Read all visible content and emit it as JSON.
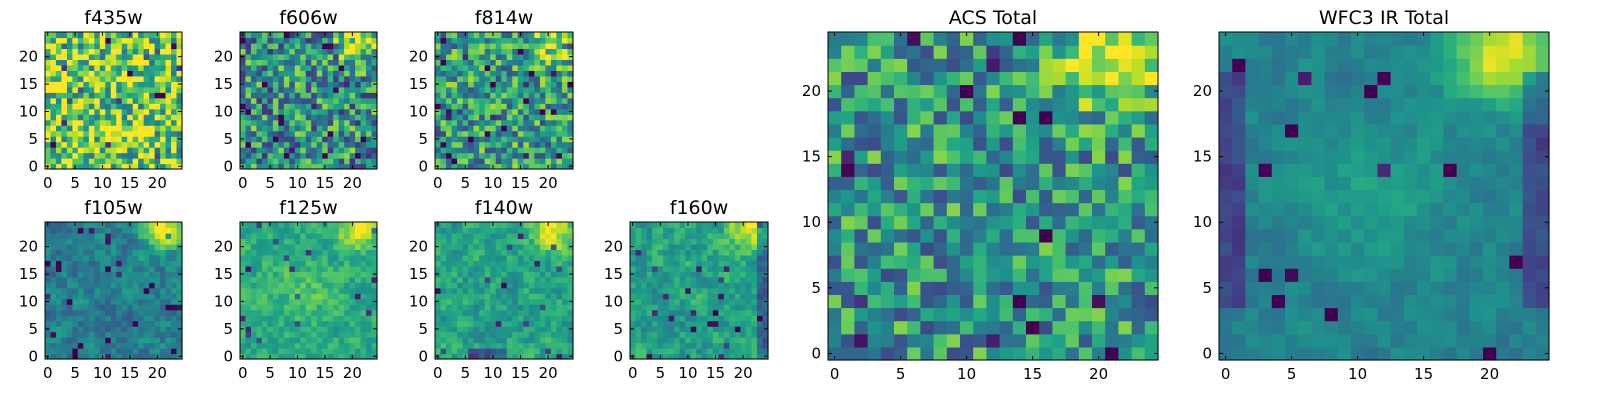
{
  "figure": {
    "description_colormap": "viridis"
  },
  "colors": {
    "background": "#ffffff",
    "axis": "#000000"
  },
  "chart_data": [
    {
      "type": "heatmap",
      "title": "f435w",
      "grid_size": [
        25,
        25
      ],
      "x_ticks": [
        0,
        5,
        10,
        15,
        20
      ],
      "y_ticks": [
        0,
        5,
        10,
        15,
        20
      ],
      "xlim": [
        -0.5,
        24.5
      ],
      "ylim": [
        -0.5,
        24.5
      ],
      "colormap": "viridis",
      "pattern": "noisy uniform, bright yellow-green speckle, no clear source"
    },
    {
      "type": "heatmap",
      "title": "f606w",
      "grid_size": [
        25,
        25
      ],
      "x_ticks": [
        0,
        5,
        10,
        15,
        20
      ],
      "y_ticks": [
        0,
        5,
        10,
        15,
        20
      ],
      "xlim": [
        -0.5,
        24.5
      ],
      "ylim": [
        -0.5,
        24.5
      ],
      "colormap": "viridis",
      "pattern": "noisy green-blue, bright source in upper-right corner"
    },
    {
      "type": "heatmap",
      "title": "f814w",
      "grid_size": [
        25,
        25
      ],
      "x_ticks": [
        0,
        5,
        10,
        15,
        20
      ],
      "y_ticks": [
        0,
        5,
        10,
        15,
        20
      ],
      "xlim": [
        -0.5,
        24.5
      ],
      "ylim": [
        -0.5,
        24.5
      ],
      "colormap": "viridis",
      "pattern": "noisy green, bright source in upper-right corner"
    },
    {
      "type": "heatmap",
      "title": "f105w",
      "grid_size": [
        25,
        25
      ],
      "x_ticks": [
        0,
        5,
        10,
        15,
        20
      ],
      "y_ticks": [
        0,
        5,
        10,
        15,
        20
      ],
      "xlim": [
        -0.5,
        24.5
      ],
      "ylim": [
        -0.5,
        24.5
      ],
      "colormap": "viridis",
      "pattern": "smooth teal, bright source upper-right, dark spots lower-middle"
    },
    {
      "type": "heatmap",
      "title": "f125w",
      "grid_size": [
        25,
        25
      ],
      "x_ticks": [
        0,
        5,
        10,
        15,
        20
      ],
      "y_ticks": [
        0,
        5,
        10,
        15,
        20
      ],
      "xlim": [
        -0.5,
        24.5
      ],
      "ylim": [
        -0.5,
        24.5
      ],
      "colormap": "viridis",
      "pattern": "smooth green, bright source upper-right, lighter center"
    },
    {
      "type": "heatmap",
      "title": "f140w",
      "grid_size": [
        25,
        25
      ],
      "x_ticks": [
        0,
        5,
        10,
        15,
        20
      ],
      "y_ticks": [
        0,
        5,
        10,
        15,
        20
      ],
      "xlim": [
        -0.5,
        24.5
      ],
      "ylim": [
        -0.5,
        24.5
      ],
      "colormap": "viridis",
      "pattern": "smooth green, bright source upper-right, dark band at bottom"
    },
    {
      "type": "heatmap",
      "title": "f160w",
      "grid_size": [
        25,
        25
      ],
      "x_ticks": [
        0,
        5,
        10,
        15,
        20
      ],
      "y_ticks": [
        0,
        5,
        10,
        15,
        20
      ],
      "xlim": [
        -0.5,
        24.5
      ],
      "ylim": [
        -0.5,
        24.5
      ],
      "colormap": "viridis",
      "pattern": "smooth green, bright source upper-right, dark right edge"
    },
    {
      "type": "heatmap",
      "title": "ACS Total",
      "grid_size": [
        25,
        25
      ],
      "x_ticks": [
        0,
        5,
        10,
        15,
        20
      ],
      "y_ticks": [
        0,
        5,
        10,
        15,
        20
      ],
      "xlim": [
        -0.5,
        24.5
      ],
      "ylim": [
        -0.5,
        24.5
      ],
      "colormap": "viridis",
      "pattern": "noisy teal-green, bright yellow source upper-right, dark pixels near bottom"
    },
    {
      "type": "heatmap",
      "title": "WFC3 IR Total",
      "grid_size": [
        25,
        25
      ],
      "x_ticks": [
        0,
        5,
        10,
        15,
        20
      ],
      "y_ticks": [
        0,
        5,
        10,
        15,
        20
      ],
      "xlim": [
        -0.5,
        24.5
      ],
      "ylim": [
        -0.5,
        24.5
      ],
      "colormap": "viridis",
      "pattern": "smooth teal, bright yellow source upper-right, lighter center, dark left and right edges"
    }
  ]
}
